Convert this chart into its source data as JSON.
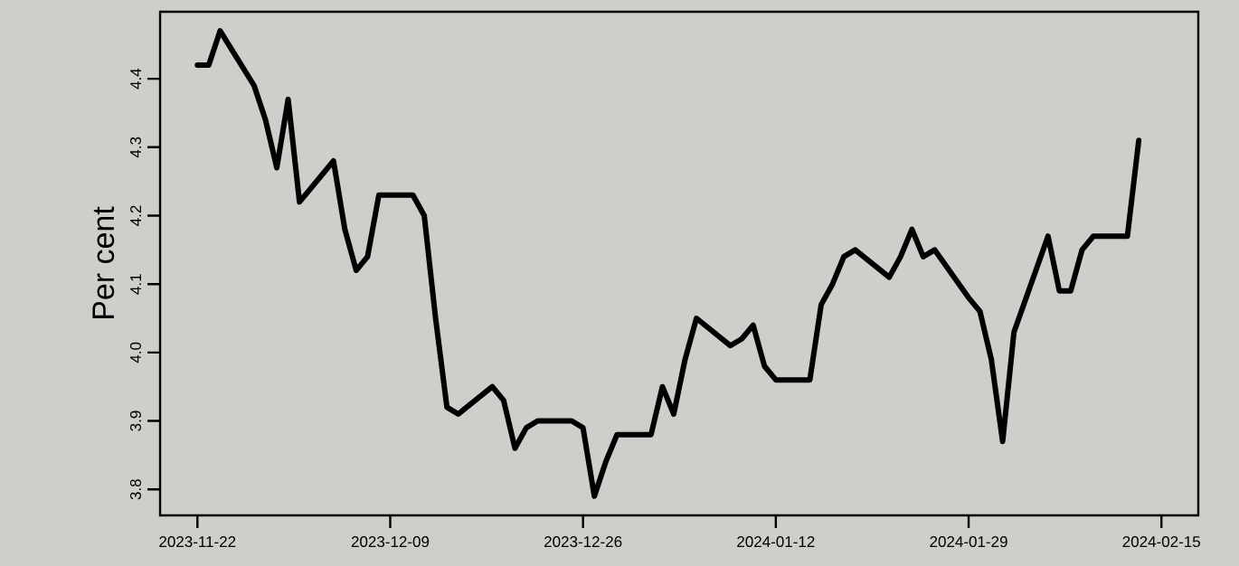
{
  "chart_data": {
    "type": "line",
    "ylabel": "Per cent",
    "color": "#000000",
    "line_style": "solid",
    "x": [
      "2023-11-22",
      "2023-11-23",
      "2023-11-24",
      "2023-11-27",
      "2023-11-28",
      "2023-11-29",
      "2023-11-30",
      "2023-12-01",
      "2023-12-04",
      "2023-12-05",
      "2023-12-06",
      "2023-12-07",
      "2023-12-08",
      "2023-12-11",
      "2023-12-12",
      "2023-12-13",
      "2023-12-14",
      "2023-12-15",
      "2023-12-18",
      "2023-12-19",
      "2023-12-20",
      "2023-12-21",
      "2023-12-22",
      "2023-12-25",
      "2023-12-26",
      "2023-12-27",
      "2023-12-28",
      "2023-12-29",
      "2024-01-01",
      "2024-01-02",
      "2024-01-03",
      "2024-01-04",
      "2024-01-05",
      "2024-01-08",
      "2024-01-09",
      "2024-01-10",
      "2024-01-11",
      "2024-01-12",
      "2024-01-15",
      "2024-01-16",
      "2024-01-17",
      "2024-01-18",
      "2024-01-19",
      "2024-01-22",
      "2024-01-23",
      "2024-01-24",
      "2024-01-25",
      "2024-01-26",
      "2024-01-29",
      "2024-01-30",
      "2024-01-31",
      "2024-02-01",
      "2024-02-02",
      "2024-02-05",
      "2024-02-06",
      "2024-02-07",
      "2024-02-08",
      "2024-02-09",
      "2024-02-12",
      "2024-02-13"
    ],
    "values": [
      4.42,
      4.42,
      4.47,
      4.39,
      4.34,
      4.27,
      4.37,
      4.22,
      4.28,
      4.18,
      4.12,
      4.14,
      4.23,
      4.23,
      4.2,
      4.05,
      3.92,
      3.91,
      3.95,
      3.93,
      3.86,
      3.89,
      3.9,
      3.9,
      3.89,
      3.79,
      3.84,
      3.88,
      3.88,
      3.95,
      3.91,
      3.99,
      4.05,
      4.01,
      4.02,
      4.04,
      3.98,
      3.96,
      3.96,
      4.07,
      4.1,
      4.14,
      4.15,
      4.11,
      4.14,
      4.18,
      4.14,
      4.15,
      4.08,
      4.06,
      3.99,
      3.87,
      4.03,
      4.17,
      4.09,
      4.09,
      4.15,
      4.17,
      4.17,
      4.31
    ],
    "xlim": [
      "2023-11-18T17:00",
      "2024-02-18T06:00"
    ],
    "ylim": [
      3.762,
      4.498
    ],
    "xticks": [
      "2023-11-22",
      "2023-12-09",
      "2023-12-26",
      "2024-01-12",
      "2024-01-29",
      "2024-02-15"
    ],
    "yticks": [
      3.8,
      3.9,
      {
        "value": 4,
        "label": "4.0"
      },
      4.1,
      4.2,
      4.3,
      4.4
    ]
  }
}
